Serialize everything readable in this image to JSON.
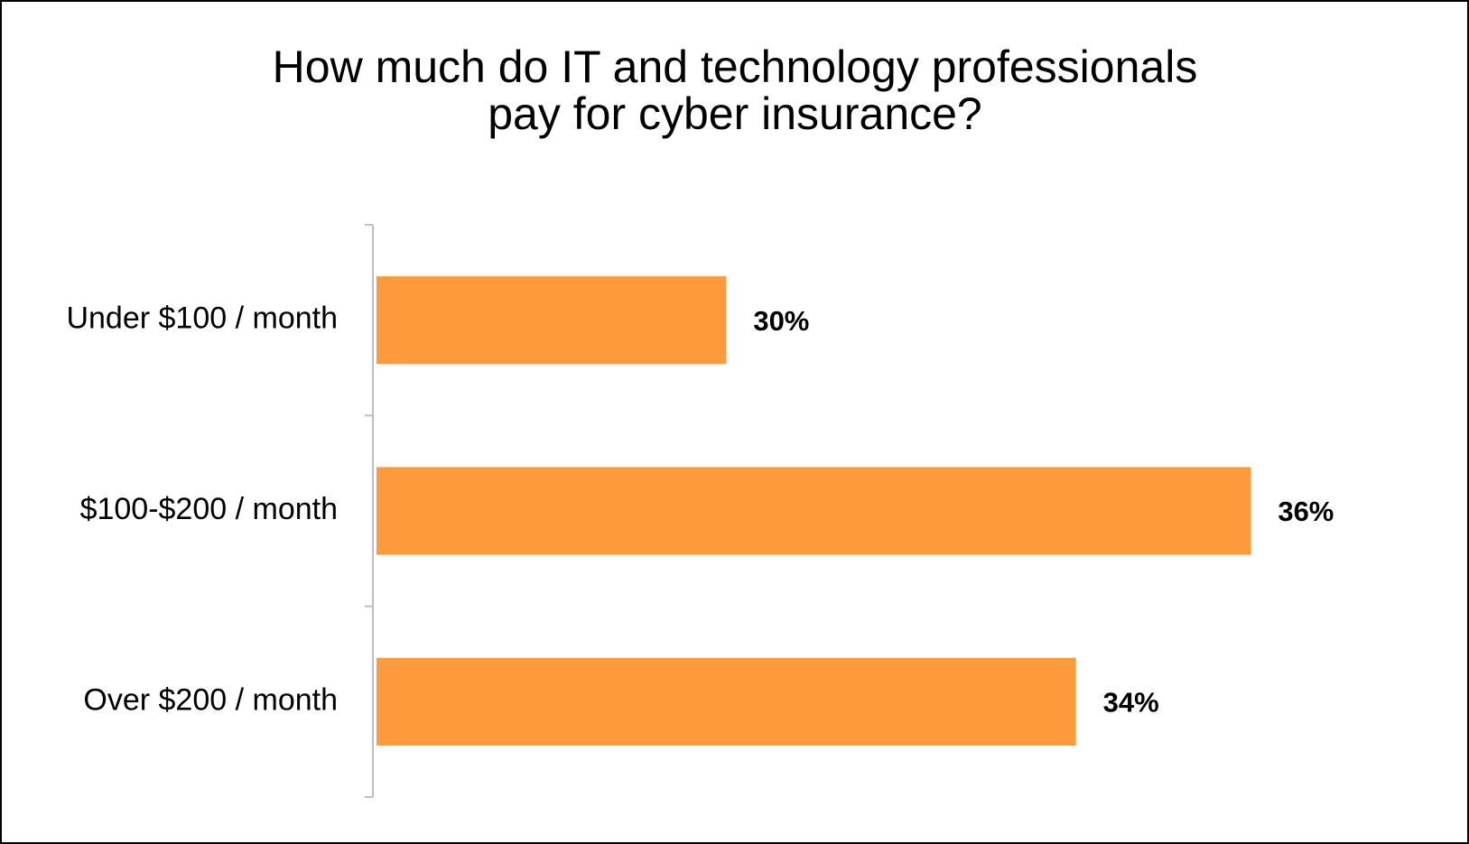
{
  "chart_data": {
    "type": "bar",
    "orientation": "horizontal",
    "title": [
      "How much do IT and technology professionals",
      "pay for cyber insurance?"
    ],
    "categories": [
      "Under $100 / month",
      "$100-$200 / month",
      "Over $200 / month"
    ],
    "values": [
      30,
      36,
      34
    ],
    "value_labels": [
      "30%",
      "36%",
      "34%"
    ],
    "color": "#ff9a3c",
    "xlim": [
      26,
      38
    ],
    "grid": false
  }
}
